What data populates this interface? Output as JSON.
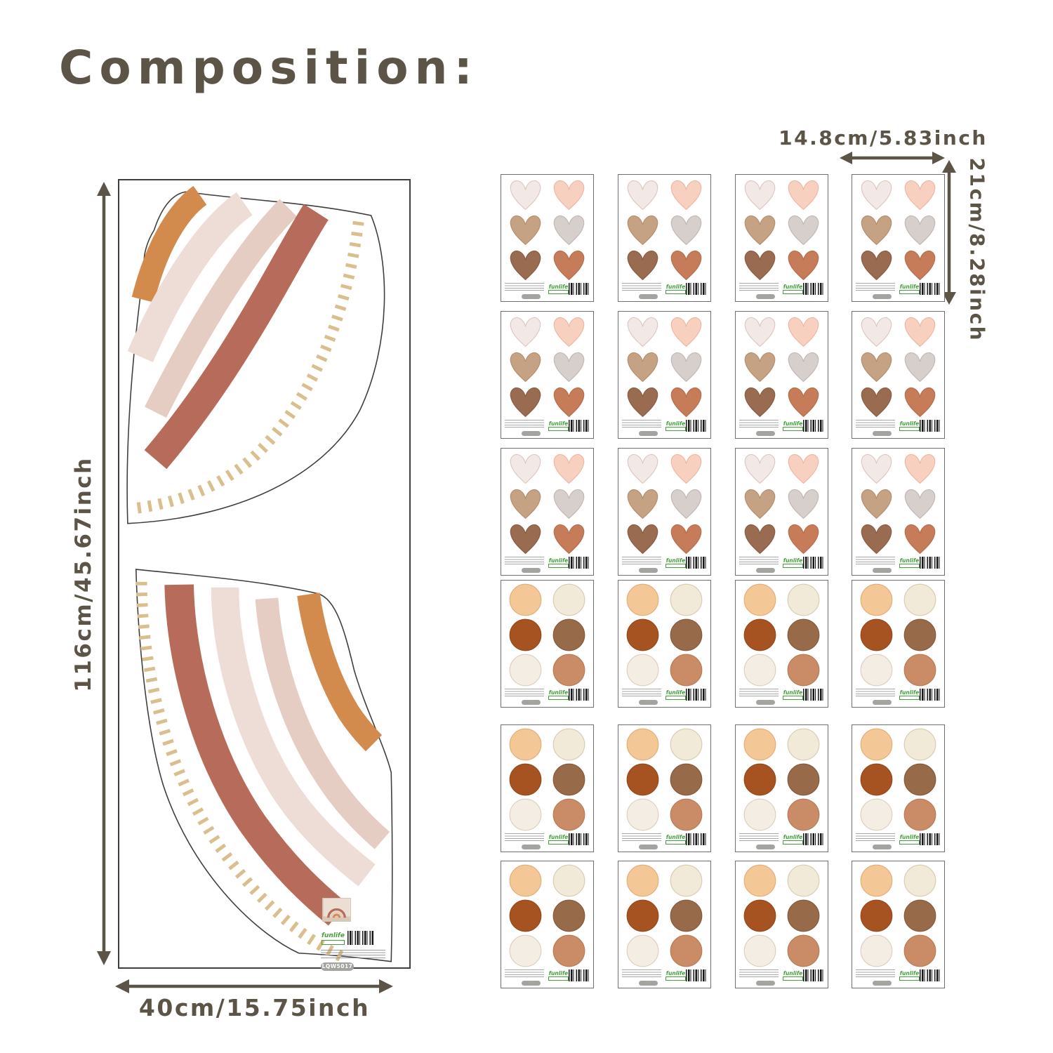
{
  "title": "Composition:",
  "theme": {
    "ink": "#5c5547",
    "panel_border": "#3f3e3a",
    "sheet_border": "#6f6f6f",
    "funlife_green": "#44a03b",
    "badge_grey": "#a3a3a0",
    "barcode_ink": "#161616"
  },
  "dimensions": {
    "panel_height_label": "116cm/45.67inch",
    "panel_width_label": "40cm/15.75inch",
    "sheet_width_label": "14.8cm/5.83inch",
    "sheet_height_label": "21cm/8.28inch"
  },
  "panel": {
    "brand": "funlife",
    "product_code": "LQW5017"
  },
  "rainbow": {
    "arc_colors": [
      "#d28a4d",
      "#eeddd6",
      "#e5cdc3",
      "#b76b5b"
    ],
    "dash_color": "#d9bf8e",
    "outline_color": "#3f3e3a"
  },
  "grid": {
    "columns": 4,
    "row_types": [
      "hearts",
      "hearts",
      "hearts",
      "dots",
      "dots",
      "dots"
    ],
    "heart_sheet_count": 12,
    "dot_sheet_count": 12,
    "sheet_brand": "funlife",
    "hearts_palette": [
      {
        "fill": "#f2e9e6",
        "edge": "#ddc6c0"
      },
      {
        "fill": "#f8d0c0",
        "edge": "#eeb5a3"
      },
      {
        "fill": "#c5a284",
        "edge": "#b18e6e"
      },
      {
        "fill": "#d7cfcb",
        "edge": "#c1b6b2"
      },
      {
        "fill": "#996b51",
        "edge": "#875c44"
      },
      {
        "fill": "#c67c59",
        "edge": "#b56c4b"
      }
    ],
    "dots_palette": [
      {
        "fill": "#f4c796",
        "edge": "#e2ae76"
      },
      {
        "fill": "#f1ead8",
        "edge": "#d8ccb1"
      },
      {
        "fill": "#a65221",
        "edge": "#94491c"
      },
      {
        "fill": "#976a4a",
        "edge": "#85593c"
      },
      {
        "fill": "#f4ede3",
        "edge": "#ddd0bc"
      },
      {
        "fill": "#c98c66",
        "edge": "#b87a55"
      }
    ]
  }
}
